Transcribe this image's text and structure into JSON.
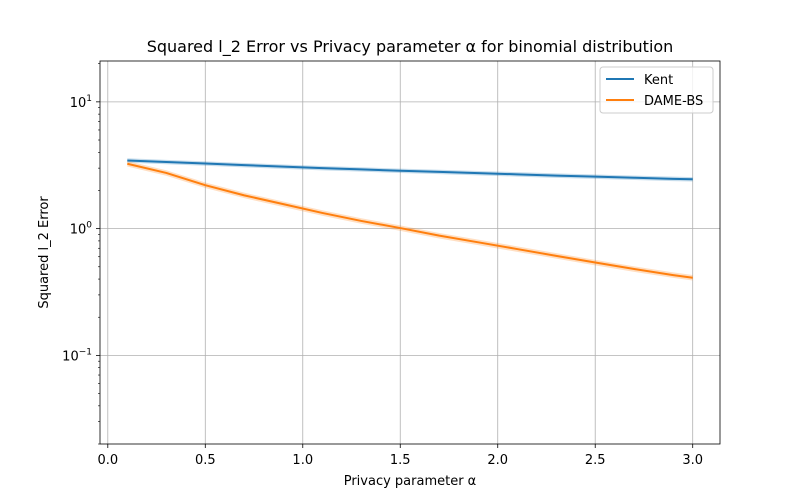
{
  "chart_data": {
    "type": "line",
    "title": "Squared l_2 Error vs Privacy parameter α for binomial distribution",
    "xlabel": "Privacy parameter α",
    "ylabel": "Squared l_2 Error",
    "xlim": [
      -0.04,
      3.14
    ],
    "ylim": [
      0.02,
      21
    ],
    "yscale": "log",
    "grid": true,
    "legend_position": "top-right",
    "x_ticks": [
      {
        "value": 0.0,
        "label": "0.0"
      },
      {
        "value": 0.5,
        "label": "0.5"
      },
      {
        "value": 1.0,
        "label": "1.0"
      },
      {
        "value": 1.5,
        "label": "1.5"
      },
      {
        "value": 2.0,
        "label": "2.0"
      },
      {
        "value": 2.5,
        "label": "2.5"
      },
      {
        "value": 3.0,
        "label": "3.0"
      }
    ],
    "y_ticks": [
      {
        "value": 0.1,
        "base": "10",
        "exp": "−1"
      },
      {
        "value": 1,
        "base": "10",
        "exp": "0"
      },
      {
        "value": 10,
        "base": "10",
        "exp": "1"
      }
    ],
    "x": [
      0.1,
      0.3,
      0.5,
      0.7,
      0.9,
      1.1,
      1.3,
      1.5,
      1.7,
      1.9,
      2.1,
      2.3,
      2.5,
      2.7,
      2.9,
      3.0
    ],
    "series": [
      {
        "name": "Kent",
        "color": "#1f77b4",
        "values": [
          3.45,
          3.35,
          3.26,
          3.17,
          3.08,
          3.0,
          2.93,
          2.86,
          2.8,
          2.74,
          2.68,
          2.62,
          2.57,
          2.52,
          2.47,
          2.45
        ],
        "band": 0.04
      },
      {
        "name": "DAME-BS",
        "color": "#ff7f0e",
        "values": [
          3.25,
          2.75,
          2.2,
          1.83,
          1.56,
          1.33,
          1.15,
          1.01,
          0.88,
          0.78,
          0.69,
          0.61,
          0.54,
          0.48,
          0.43,
          0.41
        ],
        "band": 0.05
      }
    ]
  }
}
